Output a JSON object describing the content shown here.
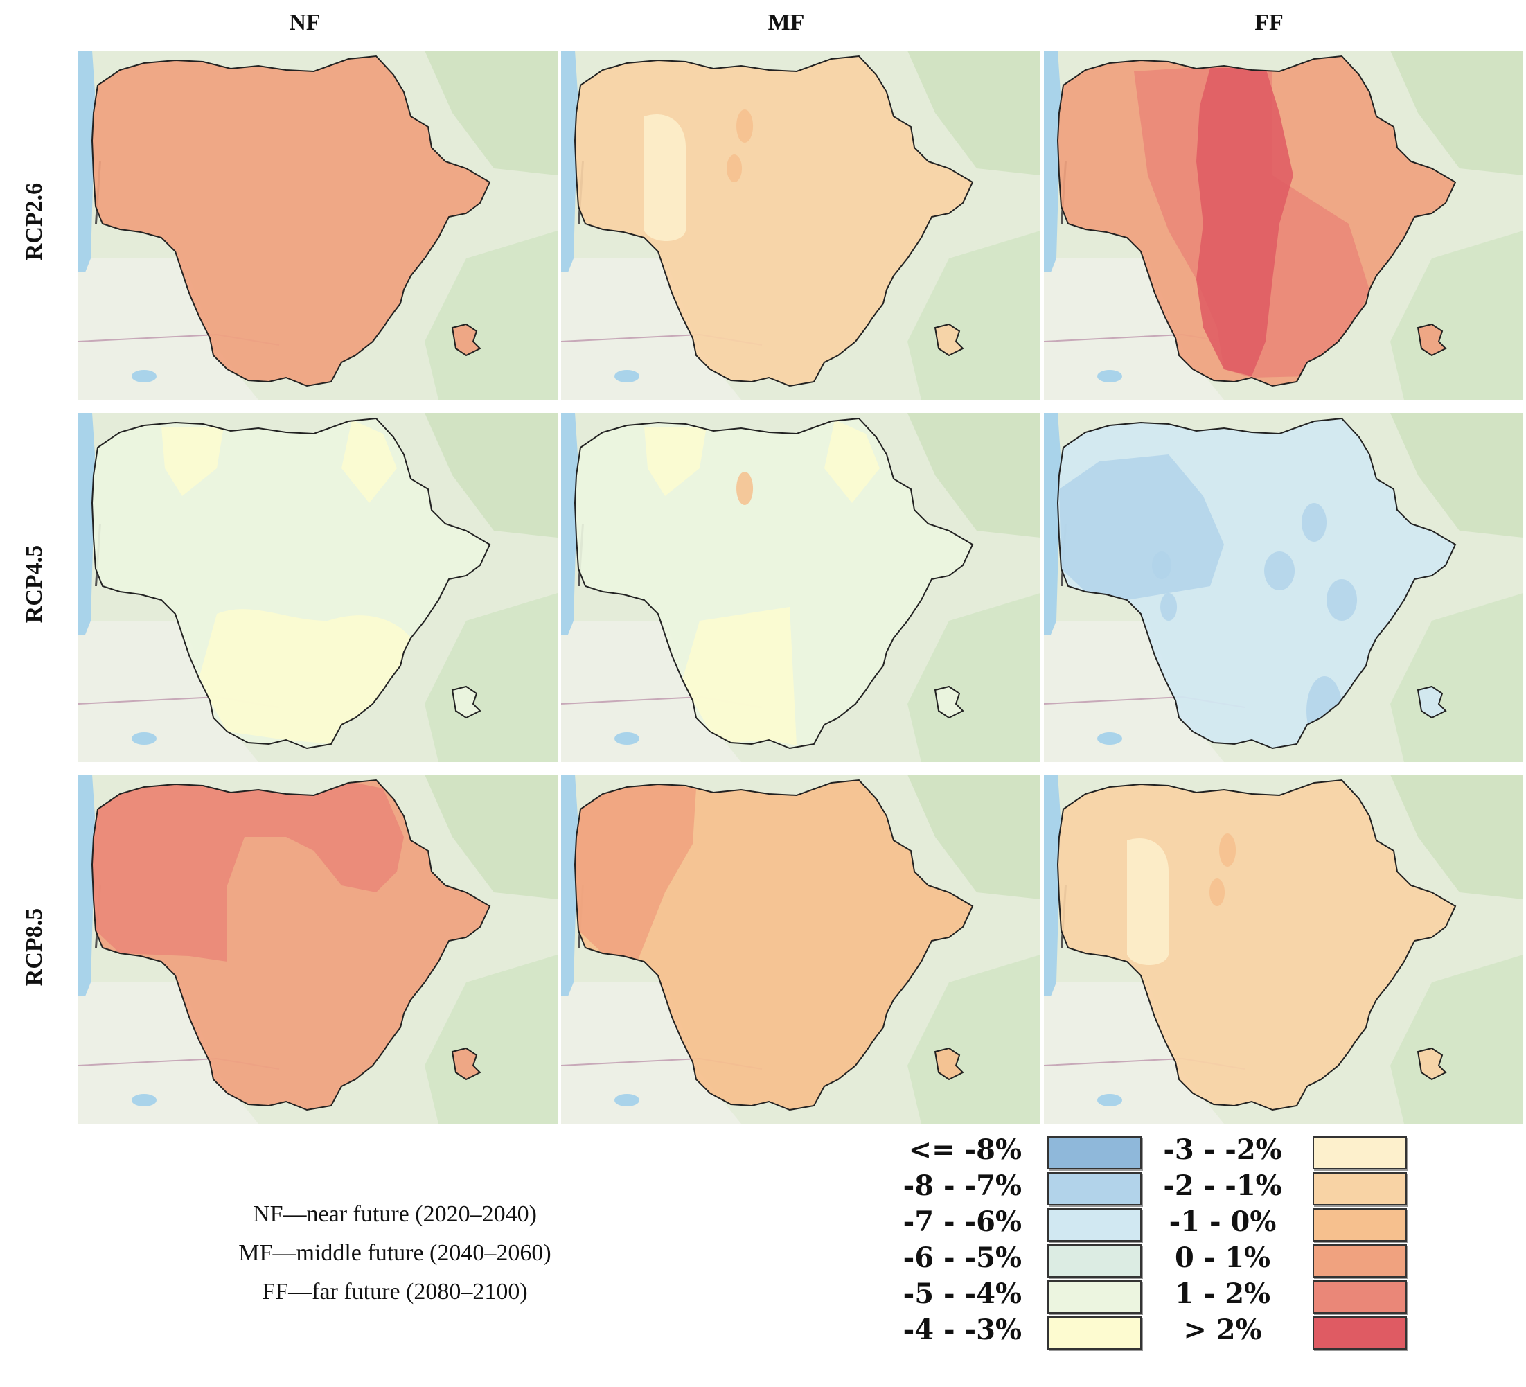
{
  "columns": [
    "NF",
    "MF",
    "FF"
  ],
  "rows": [
    "RCP2.6",
    "RCP4.5",
    "RCP8.5"
  ],
  "notes": [
    "NF—near future (2020–2040)",
    "MF—middle future (2040–2060)",
    "FF—far future (2080–2100)"
  ],
  "legend": [
    {
      "label": "<= -8%",
      "color": "#8fb8da"
    },
    {
      "label": "-8 - -7%",
      "color": "#b2d3ea"
    },
    {
      "label": "-7 - -6%",
      "color": "#d1e8f2"
    },
    {
      "label": "-6 - -5%",
      "color": "#dcece3"
    },
    {
      "label": "-5 - -4%",
      "color": "#ecf5e0"
    },
    {
      "label": "-4 - -3%",
      "color": "#fdfbd0"
    },
    {
      "label": "-3 - -2%",
      "color": "#fdf0cc"
    },
    {
      "label": "-2 - -1%",
      "color": "#f8d3a5"
    },
    {
      "label": "-1 - 0%",
      "color": "#f6c08e"
    },
    {
      "label": "0 - 1%",
      "color": "#f0a27f"
    },
    {
      "label": "1 - 2%",
      "color": "#ea8778"
    },
    {
      "label": "> 2%",
      "color": "#df5b63"
    }
  ],
  "panels": [
    {
      "row": 0,
      "col": 0,
      "base_class": 9,
      "patches": []
    },
    {
      "row": 0,
      "col": 1,
      "base_class": 7,
      "patches": [
        {
          "class": 6,
          "shape": "band-west"
        },
        {
          "class": 8,
          "shape": "spot-north"
        },
        {
          "class": 8,
          "shape": "spot-center"
        }
      ]
    },
    {
      "row": 0,
      "col": 2,
      "base_class": 9,
      "patches": [
        {
          "class": 10,
          "shape": "band-west-center"
        },
        {
          "class": 11,
          "shape": "band-center"
        }
      ]
    },
    {
      "row": 1,
      "col": 0,
      "base_class": 4,
      "patches": [
        {
          "class": 5,
          "shape": "north-lobes"
        },
        {
          "class": 5,
          "shape": "south-lobes"
        }
      ]
    },
    {
      "row": 1,
      "col": 1,
      "base_class": 4,
      "patches": [
        {
          "class": 5,
          "shape": "north-lobes"
        },
        {
          "class": 5,
          "shape": "south-west-lobe"
        },
        {
          "class": 8,
          "shape": "spot-north"
        }
      ]
    },
    {
      "row": 1,
      "col": 2,
      "base_class": 2,
      "patches": [
        {
          "class": 1,
          "shape": "west-blob"
        },
        {
          "class": 1,
          "shape": "spots-blue"
        }
      ]
    },
    {
      "row": 2,
      "col": 0,
      "base_class": 9,
      "patches": [
        {
          "class": 10,
          "shape": "north-west-blob"
        }
      ]
    },
    {
      "row": 2,
      "col": 1,
      "base_class": 8,
      "patches": [
        {
          "class": 9,
          "shape": "west-edge"
        }
      ]
    },
    {
      "row": 2,
      "col": 2,
      "base_class": 7,
      "patches": [
        {
          "class": 6,
          "shape": "band-west"
        },
        {
          "class": 8,
          "shape": "spot-north"
        },
        {
          "class": 8,
          "shape": "spot-center"
        }
      ]
    }
  ]
}
